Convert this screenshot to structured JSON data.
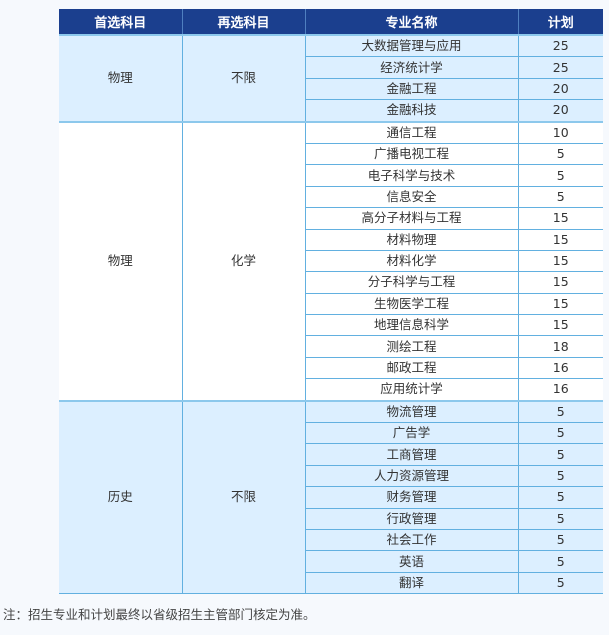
{
  "header": {
    "col1": "首选科目",
    "col2": "再选科目",
    "col3": "专业名称",
    "col4": "计划"
  },
  "groups": [
    {
      "first": "物理",
      "second": "不限",
      "majors": [
        {
          "name": "大数据管理与应用",
          "plan": "25"
        },
        {
          "name": "经济统计学",
          "plan": "25"
        },
        {
          "name": "金融工程",
          "plan": "20"
        },
        {
          "name": "金融科技",
          "plan": "20"
        }
      ]
    },
    {
      "first": "物理",
      "second": "化学",
      "majors": [
        {
          "name": "通信工程",
          "plan": "10"
        },
        {
          "name": "广播电视工程",
          "plan": "5"
        },
        {
          "name": "电子科学与技术",
          "plan": "5"
        },
        {
          "name": "信息安全",
          "plan": "5"
        },
        {
          "name": "高分子材料与工程",
          "plan": "15"
        },
        {
          "name": "材料物理",
          "plan": "15"
        },
        {
          "name": "材料化学",
          "plan": "15"
        },
        {
          "name": "分子科学与工程",
          "plan": "15"
        },
        {
          "name": "生物医学工程",
          "plan": "15"
        },
        {
          "name": "地理信息科学",
          "plan": "15"
        },
        {
          "name": "测绘工程",
          "plan": "18"
        },
        {
          "name": "邮政工程",
          "plan": "16"
        },
        {
          "name": "应用统计学",
          "plan": "16"
        }
      ]
    },
    {
      "first": "历史",
      "second": "不限",
      "majors": [
        {
          "name": "物流管理",
          "plan": "5"
        },
        {
          "name": "广告学",
          "plan": "5"
        },
        {
          "name": "工商管理",
          "plan": "5"
        },
        {
          "name": "人力资源管理",
          "plan": "5"
        },
        {
          "name": "财务管理",
          "plan": "5"
        },
        {
          "name": "行政管理",
          "plan": "5"
        },
        {
          "name": "社会工作",
          "plan": "5"
        },
        {
          "name": "英语",
          "plan": "5"
        },
        {
          "name": "翻译",
          "plan": "5"
        }
      ]
    }
  ],
  "note": "注：招生专业和计划最终以省级招生主管部门核定为准。"
}
